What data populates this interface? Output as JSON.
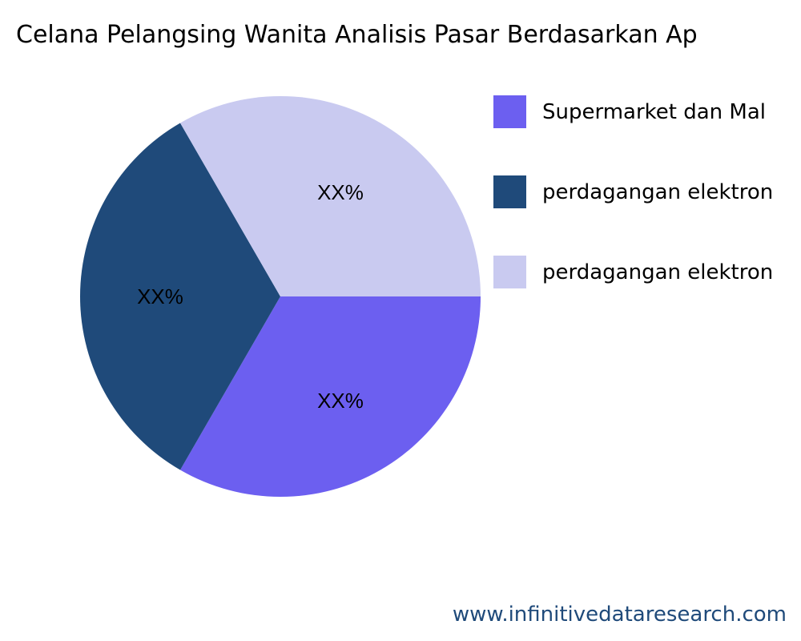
{
  "chart_data": {
    "type": "pie",
    "title": "Celana Pelangsing Wanita Analisis Pasar Berdasarkan Ap",
    "slices": [
      {
        "label": "Supermarket dan Mal",
        "value": 33.33,
        "data_label": "XX%",
        "color": "#6c5ff0"
      },
      {
        "label": "perdagangan elektron",
        "value": 33.33,
        "data_label": "XX%",
        "color": "#1f4a7a"
      },
      {
        "label": "perdagangan elektron",
        "value": 33.33,
        "data_label": "XX%",
        "color": "#c9caf0"
      }
    ],
    "legend_position": "right"
  },
  "footer": "www.infinitivedataresearch.com"
}
